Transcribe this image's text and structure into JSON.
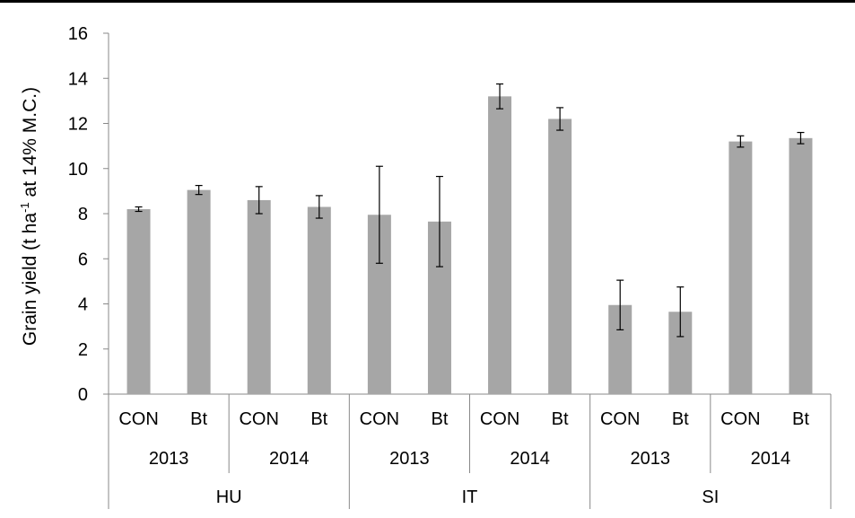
{
  "chart_data": {
    "type": "bar",
    "ylabel": {
      "pre": "Grain yield (t ha",
      "sup": "-1",
      "post": " at 14% M.C.)"
    },
    "ylim": [
      0,
      16
    ],
    "yticks": [
      0,
      2,
      4,
      6,
      8,
      10,
      12,
      14,
      16
    ],
    "grid": false,
    "bar_color": "#a6a6a6",
    "categories": [
      {
        "country": "HU",
        "year": "2013",
        "treatment": "CON"
      },
      {
        "country": "HU",
        "year": "2013",
        "treatment": "Bt"
      },
      {
        "country": "HU",
        "year": "2014",
        "treatment": "CON"
      },
      {
        "country": "HU",
        "year": "2014",
        "treatment": "Bt"
      },
      {
        "country": "IT",
        "year": "2013",
        "treatment": "CON"
      },
      {
        "country": "IT",
        "year": "2013",
        "treatment": "Bt"
      },
      {
        "country": "IT",
        "year": "2014",
        "treatment": "CON"
      },
      {
        "country": "IT",
        "year": "2014",
        "treatment": "Bt"
      },
      {
        "country": "SI",
        "year": "2013",
        "treatment": "CON"
      },
      {
        "country": "SI",
        "year": "2013",
        "treatment": "Bt"
      },
      {
        "country": "SI",
        "year": "2014",
        "treatment": "CON"
      },
      {
        "country": "SI",
        "year": "2014",
        "treatment": "Bt"
      }
    ],
    "values": [
      8.2,
      9.05,
      8.6,
      8.3,
      7.95,
      7.65,
      13.2,
      12.2,
      3.95,
      3.65,
      11.2,
      11.35
    ],
    "errors": [
      0.1,
      0.2,
      0.6,
      0.5,
      2.15,
      2.0,
      0.55,
      0.5,
      1.1,
      1.1,
      0.25,
      0.25
    ]
  }
}
